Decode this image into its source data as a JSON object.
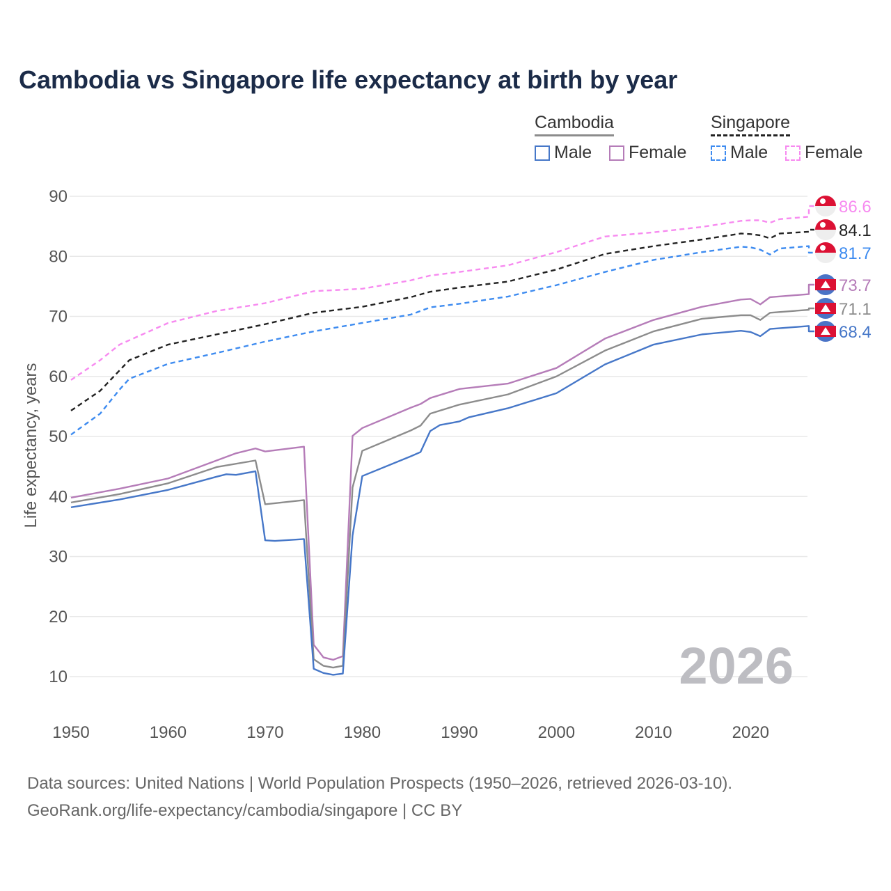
{
  "title": "Cambodia vs Singapore life expectancy at birth by year",
  "legend": {
    "groups": [
      {
        "name": "Cambodia",
        "items": [
          {
            "label": "Male",
            "color": "#4677c8"
          },
          {
            "label": "Female",
            "color": "#b57cb8"
          }
        ]
      },
      {
        "name": "Singapore",
        "items": [
          {
            "label": "Male",
            "color": "#3d8bf0"
          },
          {
            "label": "Female",
            "color": "#f78af0"
          }
        ]
      }
    ]
  },
  "footer": {
    "line1": "Data sources: United Nations | World Population Prospects (1950–2026, retrieved 2026-03-10).",
    "line2": "GeoRank.org/life-expectancy/cambodia/singapore | CC BY"
  },
  "chart_data": {
    "type": "line",
    "title": "Cambodia vs Singapore life expectancy at birth by year",
    "xlabel": "",
    "ylabel": "Life expectancy, years",
    "xlim": [
      1950,
      2026
    ],
    "ylim": [
      10,
      90
    ],
    "xticks": [
      1950,
      1960,
      1970,
      1980,
      1990,
      2000,
      2010,
      2020
    ],
    "yticks": [
      10,
      20,
      30,
      40,
      50,
      60,
      70,
      80,
      90
    ],
    "grid": true,
    "legend_position": "top-right",
    "watermark_year": "2026",
    "series": [
      {
        "name": "Singapore Female",
        "color": "#f78af0",
        "dash": true,
        "end_label": "86.6",
        "flag": "singapore",
        "x": [
          1950,
          1953,
          1955,
          1960,
          1965,
          1970,
          1975,
          1980,
          1985,
          1987,
          1990,
          1995,
          2000,
          2005,
          2010,
          2015,
          2019,
          2020,
          2021,
          2022,
          2023,
          2026
        ],
        "y": [
          59.4,
          62.7,
          65.3,
          68.9,
          70.9,
          72.2,
          74.2,
          74.6,
          76.0,
          76.8,
          77.4,
          78.5,
          80.7,
          83.3,
          84.0,
          84.9,
          85.9,
          86.0,
          86.0,
          85.6,
          86.2,
          86.6
        ]
      },
      {
        "name": "Singapore",
        "color": "#222222",
        "dash": true,
        "end_label": "84.1",
        "flag": "singapore",
        "x": [
          1950,
          1953,
          1956,
          1960,
          1965,
          1970,
          1975,
          1980,
          1985,
          1987,
          1990,
          1995,
          2000,
          2005,
          2010,
          2015,
          2019,
          2020,
          2021,
          2022,
          2023,
          2026
        ],
        "y": [
          54.3,
          57.6,
          62.7,
          65.3,
          67.0,
          68.7,
          70.6,
          71.6,
          73.2,
          74.1,
          74.8,
          75.8,
          77.8,
          80.4,
          81.7,
          82.8,
          83.8,
          83.7,
          83.5,
          83.0,
          83.8,
          84.1
        ]
      },
      {
        "name": "Singapore Male",
        "color": "#3d8bf0",
        "dash": true,
        "end_label": "81.7",
        "flag": "singapore",
        "x": [
          1950,
          1953,
          1955,
          1956,
          1960,
          1965,
          1970,
          1975,
          1980,
          1985,
          1987,
          1990,
          1995,
          2000,
          2005,
          2010,
          2015,
          2019,
          2020,
          2021,
          2022,
          2023,
          2026
        ],
        "y": [
          50.3,
          53.8,
          57.8,
          59.6,
          62.1,
          63.9,
          65.8,
          67.5,
          68.9,
          70.3,
          71.5,
          72.1,
          73.3,
          75.2,
          77.4,
          79.4,
          80.7,
          81.6,
          81.5,
          81.1,
          80.3,
          81.3,
          81.7
        ]
      },
      {
        "name": "Cambodia Female",
        "color": "#b57cb8",
        "dash": false,
        "end_label": "73.7",
        "flag": "cambodia",
        "x": [
          1950,
          1955,
          1960,
          1965,
          1967,
          1969,
          1970,
          1974,
          1975,
          1976,
          1977,
          1978,
          1979,
          1980,
          1985,
          1986,
          1987,
          1990,
          1995,
          2000,
          2005,
          2010,
          2015,
          2019,
          2020,
          2021,
          2022,
          2026
        ],
        "y": [
          39.8,
          41.3,
          43.0,
          46.0,
          47.2,
          48.0,
          47.5,
          48.3,
          15.3,
          13.2,
          12.8,
          13.4,
          50.1,
          51.4,
          54.8,
          55.4,
          56.4,
          57.9,
          58.8,
          61.4,
          66.3,
          69.4,
          71.6,
          72.8,
          72.9,
          72.0,
          73.2,
          73.7
        ]
      },
      {
        "name": "Cambodia",
        "color": "#8c8c8c",
        "dash": false,
        "end_label": "71.1",
        "flag": "cambodia",
        "x": [
          1950,
          1955,
          1960,
          1965,
          1969,
          1970,
          1974,
          1975,
          1976,
          1977,
          1978,
          1979,
          1980,
          1985,
          1986,
          1987,
          1990,
          1995,
          2000,
          2005,
          2010,
          2015,
          2019,
          2020,
          2021,
          2022,
          2026
        ],
        "y": [
          39.0,
          40.4,
          42.2,
          44.9,
          46.0,
          38.7,
          39.4,
          12.9,
          11.8,
          11.5,
          11.8,
          41.5,
          47.6,
          51.0,
          51.8,
          53.8,
          55.3,
          57.0,
          60.0,
          64.3,
          67.5,
          69.6,
          70.2,
          70.2,
          69.4,
          70.6,
          71.1
        ]
      },
      {
        "name": "Cambodia Male",
        "color": "#4677c8",
        "dash": false,
        "end_label": "68.4",
        "flag": "cambodia",
        "x": [
          1950,
          1955,
          1960,
          1965,
          1966,
          1967,
          1969,
          1970,
          1971,
          1974,
          1975,
          1976,
          1977,
          1978,
          1979,
          1980,
          1985,
          1986,
          1987,
          1988,
          1990,
          1991,
          1995,
          2000,
          2005,
          2010,
          2015,
          2019,
          2020,
          2021,
          2022,
          2026
        ],
        "y": [
          38.2,
          39.5,
          41.1,
          43.3,
          43.7,
          43.6,
          44.2,
          32.7,
          32.6,
          32.9,
          11.3,
          10.6,
          10.3,
          10.5,
          33.5,
          43.4,
          46.7,
          47.4,
          50.9,
          51.9,
          52.5,
          53.2,
          54.7,
          57.2,
          62.0,
          65.3,
          67.0,
          67.6,
          67.4,
          66.7,
          67.9,
          68.4
        ]
      }
    ]
  }
}
